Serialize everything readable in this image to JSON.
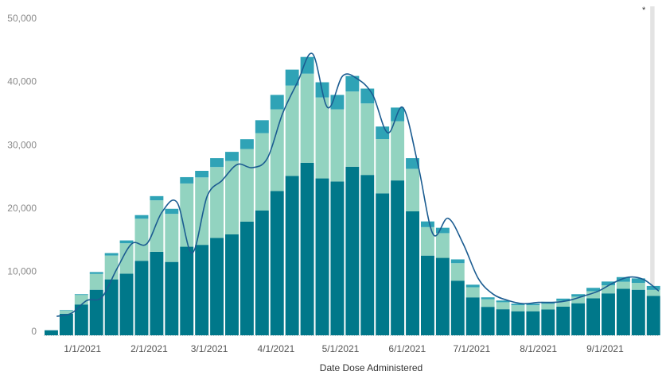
{
  "colors": {
    "dose_first": "#00788a",
    "dose_second": "#92d3c0",
    "dose_third": "#2fa3b6",
    "avg_line": "#1b5c91",
    "incomplete_band": "#e3e3e3",
    "baseline": "#c8c8c8"
  },
  "chart_data": {
    "type": "bar",
    "stacked": true,
    "xlabel": "Date Dose Administered",
    "ylabel": "",
    "ylim": [
      0,
      52000
    ],
    "yticks": [
      0,
      10000,
      20000,
      30000,
      40000,
      50000
    ],
    "ytick_labels": [
      "0",
      "10,000",
      "20,000",
      "30,000",
      "40,000",
      "50,000"
    ],
    "x_range": [
      "2020-12-14",
      "2021-09-26"
    ],
    "xtick_labels": [
      "1/1/2021",
      "2/1/2021",
      "3/1/2021",
      "4/1/2021",
      "5/1/2021",
      "6/1/2021",
      "7/1/2021",
      "8/1/2021",
      "9/1/2021"
    ],
    "grid": false,
    "legend": "none",
    "annotation": "*",
    "incomplete_period": [
      "2021-09-22",
      "2021-09-24"
    ],
    "weekly_totals": {
      "dates": [
        "2020-12-14",
        "2020-12-21",
        "2020-12-28",
        "2021-01-04",
        "2021-01-11",
        "2021-01-18",
        "2021-01-25",
        "2021-02-01",
        "2021-02-08",
        "2021-02-15",
        "2021-02-22",
        "2021-03-01",
        "2021-03-08",
        "2021-03-15",
        "2021-03-22",
        "2021-03-29",
        "2021-04-05",
        "2021-04-12",
        "2021-04-19",
        "2021-04-26",
        "2021-05-03",
        "2021-05-10",
        "2021-05-17",
        "2021-05-24",
        "2021-05-31",
        "2021-06-07",
        "2021-06-14",
        "2021-06-21",
        "2021-06-28",
        "2021-07-05",
        "2021-07-12",
        "2021-07-19",
        "2021-07-26",
        "2021-08-02",
        "2021-08-09",
        "2021-08-16",
        "2021-08-23",
        "2021-08-30",
        "2021-09-06",
        "2021-09-13",
        "2021-09-20"
      ],
      "values": [
        800,
        4000,
        6500,
        10000,
        13000,
        15000,
        19000,
        22000,
        20000,
        25000,
        26000,
        28000,
        29000,
        31000,
        34000,
        38000,
        42000,
        44000,
        40000,
        38000,
        41000,
        39000,
        33000,
        36000,
        28000,
        18000,
        17000,
        12000,
        8000,
        6000,
        5500,
        5000,
        5000,
        5300,
        5800,
        6500,
        7500,
        8500,
        9200,
        9000,
        7800
      ],
      "first_dose_share": [
        1.0,
        0.85,
        0.75,
        0.72,
        0.68,
        0.65,
        0.62,
        0.6,
        0.58,
        0.56,
        0.55,
        0.55,
        0.55,
        0.58,
        0.58,
        0.6,
        0.6,
        0.62,
        0.62,
        0.64,
        0.65,
        0.65,
        0.68,
        0.68,
        0.7,
        0.7,
        0.72,
        0.72,
        0.75,
        0.75,
        0.75,
        0.76,
        0.76,
        0.77,
        0.78,
        0.78,
        0.78,
        0.78,
        0.8,
        0.8,
        0.8
      ],
      "third_dose_share": [
        0.0,
        0.02,
        0.02,
        0.03,
        0.03,
        0.03,
        0.03,
        0.03,
        0.04,
        0.04,
        0.04,
        0.05,
        0.05,
        0.05,
        0.06,
        0.06,
        0.06,
        0.06,
        0.06,
        0.06,
        0.06,
        0.06,
        0.06,
        0.06,
        0.06,
        0.05,
        0.05,
        0.05,
        0.05,
        0.05,
        0.05,
        0.05,
        0.05,
        0.06,
        0.06,
        0.06,
        0.07,
        0.07,
        0.08,
        0.08,
        0.08
      ]
    },
    "rolling_average": {
      "dates": [
        "2020-12-20",
        "2020-12-27",
        "2021-01-03",
        "2021-01-10",
        "2021-01-17",
        "2021-01-24",
        "2021-01-31",
        "2021-02-07",
        "2021-02-14",
        "2021-02-21",
        "2021-02-28",
        "2021-03-07",
        "2021-03-14",
        "2021-03-21",
        "2021-03-28",
        "2021-04-04",
        "2021-04-11",
        "2021-04-18",
        "2021-04-25",
        "2021-05-02",
        "2021-05-09",
        "2021-05-16",
        "2021-05-23",
        "2021-05-30",
        "2021-06-06",
        "2021-06-13",
        "2021-06-20",
        "2021-06-27",
        "2021-07-04",
        "2021-07-11",
        "2021-07-18",
        "2021-07-25",
        "2021-08-01",
        "2021-08-08",
        "2021-08-15",
        "2021-08-22",
        "2021-08-29",
        "2021-09-05",
        "2021-09-12",
        "2021-09-19",
        "2021-09-26"
      ],
      "values": [
        3000,
        3500,
        5500,
        6000,
        10500,
        14500,
        14500,
        19500,
        21000,
        13000,
        22000,
        24500,
        27000,
        26500,
        28000,
        35000,
        40000,
        44500,
        36000,
        41000,
        40500,
        38000,
        32000,
        36000,
        27000,
        16000,
        18500,
        14500,
        9000,
        6500,
        5500,
        5000,
        5200,
        5200,
        5500,
        6200,
        7000,
        8300,
        9200,
        8800,
        7000
      ]
    }
  }
}
